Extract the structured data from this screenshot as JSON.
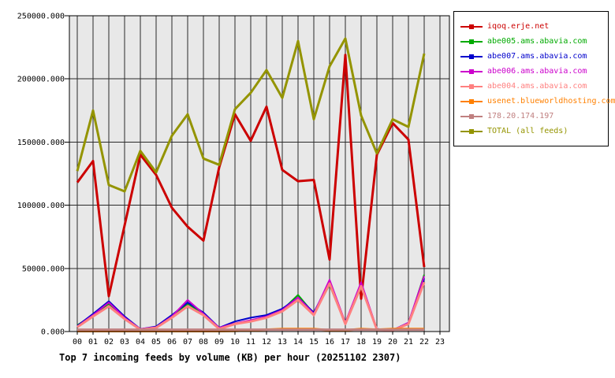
{
  "window": {
    "background": "#ffffff",
    "plot_frame_color": "#000000"
  },
  "chart_data": {
    "type": "line",
    "title": "Top 7 incoming feeds by volume (KB) per hour (20251102 2307)",
    "x_categories": [
      "00",
      "01",
      "02",
      "03",
      "04",
      "05",
      "06",
      "07",
      "08",
      "09",
      "10",
      "11",
      "12",
      "13",
      "14",
      "15",
      "16",
      "17",
      "18",
      "19",
      "20",
      "21",
      "22",
      "23"
    ],
    "y_ticks": [
      0,
      50000,
      100000,
      150000,
      200000,
      250000
    ],
    "y_tick_labels": [
      "0.000",
      "50000.000",
      "100000.000",
      "150000.000",
      "200000.000",
      "250000.000"
    ],
    "ylim": [
      0,
      250000
    ],
    "grid": true,
    "grid_color": "#2a2a2a",
    "plot_background": "#e8e8e8",
    "legend_position": "top-right",
    "series": [
      {
        "name": "iqoq.erje.net",
        "color": "#cc0000",
        "line_width": 3,
        "values": [
          118000,
          135000,
          28000,
          84000,
          140000,
          124000,
          98000,
          83000,
          72000,
          130000,
          172000,
          151000,
          178000,
          128000,
          119000,
          120000,
          57000,
          219000,
          26000,
          140000,
          165000,
          152000,
          51000
        ]
      },
      {
        "name": "abe005.ams.abavia.com",
        "color": "#00aa00",
        "line_width": 2,
        "values": [
          5000,
          13000,
          22000,
          11000,
          2000,
          3000,
          12000,
          22000,
          14000,
          3000,
          6000,
          8000,
          12000,
          17000,
          29000,
          14000,
          37000,
          6000,
          35000,
          2000,
          1000,
          6000,
          45000
        ]
      },
      {
        "name": "abe007.ams.abavia.com",
        "color": "#0000cc",
        "line_width": 2,
        "values": [
          4500,
          14000,
          24000,
          12000,
          2000,
          4000,
          13000,
          23000,
          15000,
          3000,
          8000,
          11000,
          13000,
          18000,
          27000,
          15000,
          39000,
          7000,
          38000,
          2000,
          1200,
          7000,
          42000
        ]
      },
      {
        "name": "abe006.ams.abavia.com",
        "color": "#cc00cc",
        "line_width": 2,
        "values": [
          4000,
          13000,
          23000,
          11000,
          2000,
          3500,
          12000,
          25000,
          14000,
          3000,
          6500,
          9000,
          12000,
          17000,
          27000,
          14000,
          41000,
          7000,
          39000,
          2000,
          1000,
          7000,
          44000
        ]
      },
      {
        "name": "abe004.ams.abavia.com",
        "color": "#ff8080",
        "line_width": 3,
        "values": [
          3500,
          12000,
          20000,
          10000,
          1500,
          3000,
          11000,
          20000,
          13000,
          2000,
          6000,
          8000,
          11000,
          16000,
          25000,
          13000,
          38000,
          6000,
          36000,
          1500,
          1000,
          6000,
          39000
        ]
      },
      {
        "name": "usenet.blueworldhosting.com",
        "color": "#ff8000",
        "line_width": 3,
        "values": [
          300,
          300,
          300,
          300,
          300,
          300,
          300,
          300,
          300,
          300,
          500,
          1000,
          1500,
          2000,
          2000,
          2000,
          1000,
          1000,
          2000,
          1500,
          2000,
          2000,
          2000
        ]
      },
      {
        "name": "178.20.174.197",
        "color": "#c08080",
        "line_width": 3,
        "values": [
          1500,
          1500,
          1500,
          1500,
          1500,
          1500,
          1500,
          1500,
          1500,
          1500,
          1500,
          1500,
          1500,
          1500,
          1500,
          1500,
          1500,
          1500,
          1500,
          1500,
          1500,
          1500,
          1500
        ]
      },
      {
        "name": "TOTAL (all feeds)",
        "color": "#949400",
        "line_width": 3,
        "values": [
          127000,
          175000,
          116000,
          111000,
          143000,
          126000,
          155000,
          172000,
          137000,
          132000,
          176000,
          189000,
          207000,
          185000,
          230000,
          168000,
          210000,
          232000,
          171000,
          141000,
          168000,
          162000,
          220000
        ]
      }
    ]
  }
}
